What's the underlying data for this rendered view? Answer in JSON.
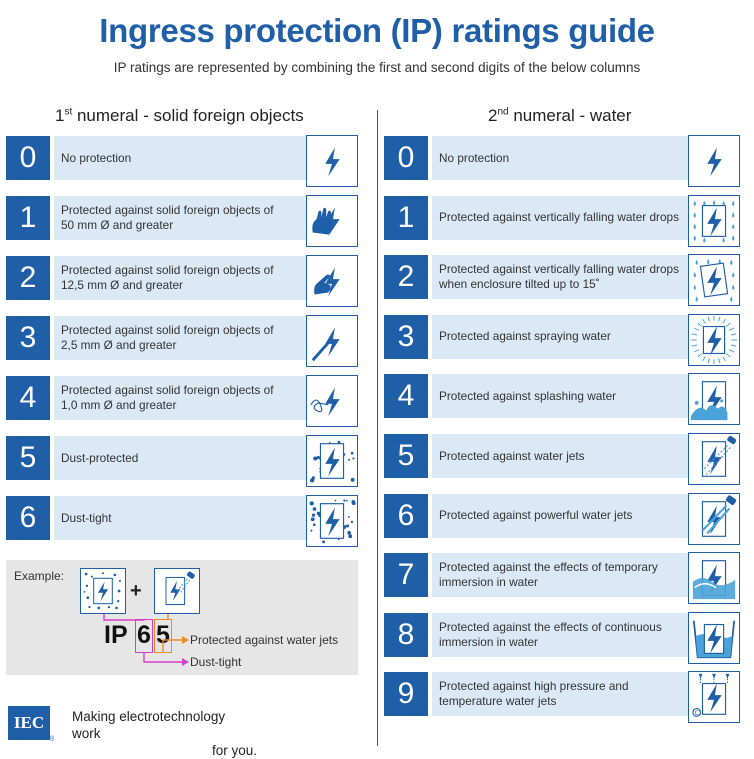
{
  "title": "Ingress protection (IP) ratings guide",
  "subtitle": "IP ratings are represented by combining the first and second digits of the below columns",
  "left_header": {
    "ordinal": "1",
    "sup": "st",
    "text": " numeral - solid foreign objects"
  },
  "right_header": {
    "ordinal": "2",
    "sup": "nd",
    "text": " numeral - water"
  },
  "solids": [
    {
      "digit": "0",
      "line1": "No protection",
      "line2": "",
      "icon": "bolt-icon"
    },
    {
      "digit": "1",
      "line1": "Protected against solid foreign objects of",
      "line2": "50 mm Ø and greater",
      "icon": "hand-icon"
    },
    {
      "digit": "2",
      "line1": "Protected against solid foreign objects of",
      "line2": "12,5 mm Ø and greater",
      "icon": "finger-icon"
    },
    {
      "digit": "3",
      "line1": "Protected against solid foreign objects of",
      "line2": "2,5 mm Ø and greater",
      "icon": "tool-icon"
    },
    {
      "digit": "4",
      "line1": "Protected against solid foreign objects of",
      "line2": "1,0 mm Ø and greater",
      "icon": "wire-icon"
    },
    {
      "digit": "5",
      "line1": "Dust-protected",
      "line2": "",
      "icon": "dust-protected-icon"
    },
    {
      "digit": "6",
      "line1": "Dust-tight",
      "line2": "",
      "icon": "dust-tight-icon"
    }
  ],
  "water": [
    {
      "digit": "0",
      "line1": "No protection",
      "line2": "",
      "icon": "bolt-icon"
    },
    {
      "digit": "1",
      "line1": "Protected against vertically falling water drops",
      "line2": "",
      "icon": "vertical-drops-icon"
    },
    {
      "digit": "2",
      "line1": "Protected against vertically falling water drops",
      "line2": "when enclosure tilted up to 15˚",
      "icon": "tilted-drops-icon"
    },
    {
      "digit": "3",
      "line1": "Protected against spraying water",
      "line2": "",
      "icon": "spray-icon"
    },
    {
      "digit": "4",
      "line1": "Protected against splashing water",
      "line2": "",
      "icon": "splash-icon"
    },
    {
      "digit": "5",
      "line1": "Protected against water jets",
      "line2": "",
      "icon": "water-jet-icon"
    },
    {
      "digit": "6",
      "line1": "Protected against powerful water jets",
      "line2": "",
      "icon": "powerful-jet-icon"
    },
    {
      "digit": "7",
      "line1": "Protected against the effects of temporary",
      "line2": "immersion in water",
      "icon": "temporary-immersion-icon"
    },
    {
      "digit": "8",
      "line1": "Protected against the effects of continuous",
      "line2": "immersion in water",
      "icon": "continuous-immersion-icon"
    },
    {
      "digit": "9",
      "line1": "Protected against high pressure and",
      "line2": "temperature water jets",
      "icon": "high-pressure-icon"
    }
  ],
  "example": {
    "label": "Example:",
    "plus": "+",
    "ip": "IP",
    "first_digit": "6",
    "second_digit": "5",
    "second_meaning": "Protected against water jets",
    "first_meaning": "Dust-tight"
  },
  "footer": {
    "logo": "IEC",
    "registered": "®",
    "tagline_line1": "Making  electrotechnology work",
    "tagline_line2": "for you."
  },
  "colors": {
    "brand_blue": "#1f5fa8",
    "band": "#dbe9f6",
    "pink": "#d63fc8",
    "orange": "#f08a24"
  }
}
